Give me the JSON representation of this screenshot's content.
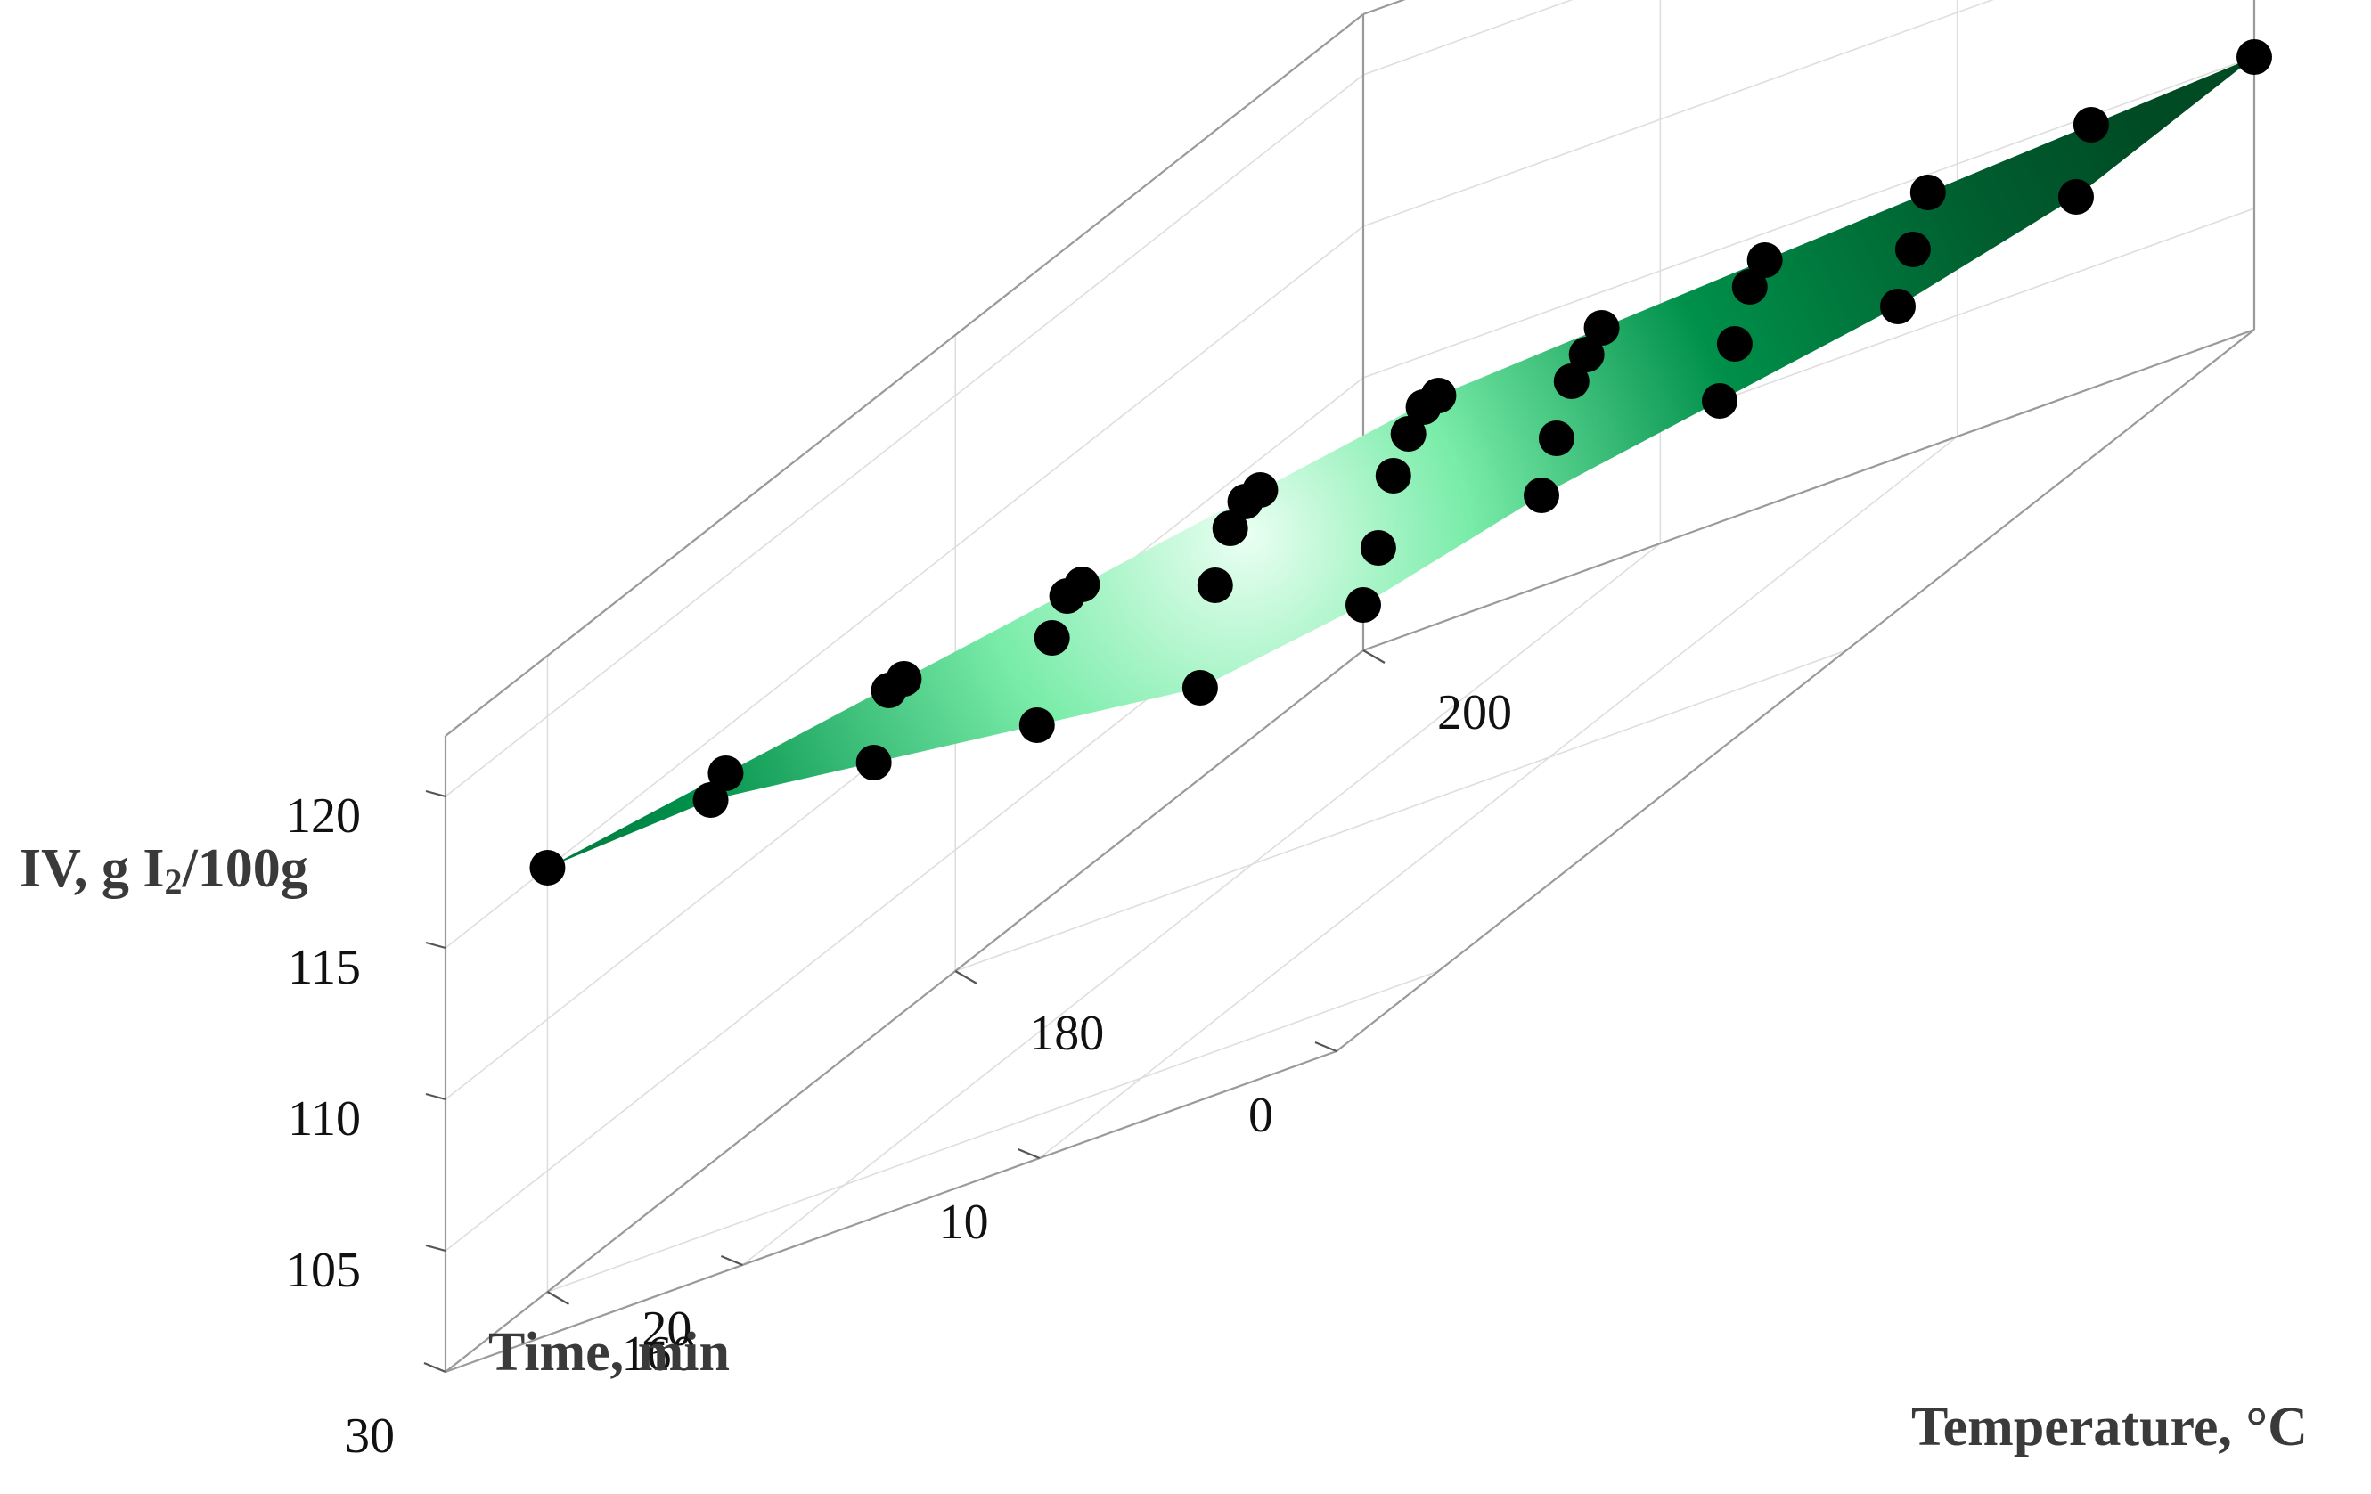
{
  "chart_data": {
    "type": "surface3d",
    "title": "",
    "x_axis": {
      "label": "Time, min",
      "ticks": [
        0,
        10,
        20,
        30
      ],
      "range": [
        0,
        30
      ]
    },
    "y_axis": {
      "label": "Temperature, °C",
      "ticks": [
        160,
        180,
        200
      ],
      "range": [
        155,
        200
      ]
    },
    "z_axis": {
      "label": "IV, g I",
      "label_sub": "2",
      "label_suffix": "/100g",
      "ticks": [
        105,
        110,
        115,
        120
      ],
      "range": [
        101,
        122
      ]
    },
    "grid": true,
    "surface_color": "#006b35",
    "highlight_color": "#e6fff0",
    "marker_color": "#000000",
    "time_values": [
      0,
      6,
      12,
      18,
      24,
      30
    ],
    "temperature_values": [
      160,
      168,
      176,
      184,
      192,
      200
    ],
    "iv_values": [
      [
        120.0,
        118.0,
        116.0,
        114.0,
        112.0,
        110.0
      ],
      [
        119.0,
        117.5,
        115.0,
        113.0,
        110.0,
        107.5
      ],
      [
        118.0,
        116.5,
        114.5,
        112.0,
        109.0,
        106.0
      ],
      [
        117.0,
        115.5,
        113.5,
        111.0,
        108.0,
        105.0
      ],
      [
        116.0,
        114.5,
        112.0,
        109.5,
        106.5,
        104.0
      ],
      [
        115.0,
        113.0,
        110.0,
        107.0,
        104.0,
        102.5
      ]
    ]
  }
}
